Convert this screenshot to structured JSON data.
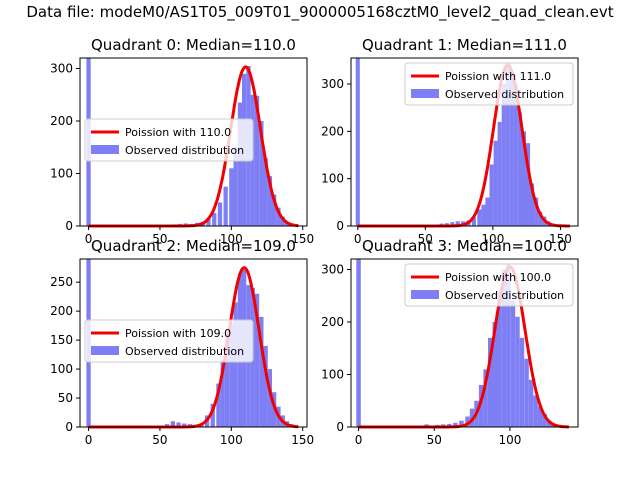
{
  "figure_title": "Data file: modeM0/AS1T05_009T01_9000005168cztM0_level2_quad_clean.evt",
  "colors": {
    "histogram": "#7f7ff5",
    "poisson": "#f00000",
    "axes": "#000000"
  },
  "chart_data": [
    {
      "type": "bar",
      "title": "Quadrant 0: Median=110.0",
      "legend_position": "center-left",
      "legend": {
        "line": "Poission with 110.0",
        "bars": "Observed distribution"
      },
      "xlim": [
        -6,
        153
      ],
      "ylim": [
        0,
        320
      ],
      "xticks": [
        0,
        50,
        100,
        150
      ],
      "yticks": [
        0,
        100,
        200,
        300
      ],
      "bin_width": 3,
      "poisson_mean": 110,
      "poisson_peak": 303,
      "bins": [
        [
          0,
          320
        ],
        [
          60,
          3
        ],
        [
          64,
          4
        ],
        [
          68,
          5
        ],
        [
          72,
          4
        ],
        [
          76,
          6
        ],
        [
          80,
          8
        ],
        [
          84,
          15
        ],
        [
          88,
          25
        ],
        [
          92,
          45
        ],
        [
          96,
          75
        ],
        [
          100,
          110
        ],
        [
          103,
          150
        ],
        [
          106,
          235
        ],
        [
          109,
          290
        ],
        [
          112,
          305
        ],
        [
          115,
          250
        ],
        [
          118,
          248
        ],
        [
          121,
          200
        ],
        [
          124,
          130
        ],
        [
          127,
          95
        ],
        [
          130,
          60
        ],
        [
          133,
          35
        ],
        [
          136,
          18
        ],
        [
          139,
          8
        ],
        [
          142,
          4
        ]
      ]
    },
    {
      "type": "bar",
      "title": "Quadrant 1: Median=111.0",
      "legend_position": "top-right",
      "legend": {
        "line": "Poission with 111.0",
        "bars": "Observed distribution"
      },
      "xlim": [
        -5,
        163
      ],
      "ylim": [
        0,
        355
      ],
      "xticks": [
        0,
        50,
        100,
        150
      ],
      "yticks": [
        0,
        100,
        200,
        300
      ],
      "bin_width": 3,
      "poisson_mean": 111,
      "poisson_peak": 340,
      "bins": [
        [
          0,
          355
        ],
        [
          58,
          3
        ],
        [
          62,
          5
        ],
        [
          66,
          6
        ],
        [
          70,
          8
        ],
        [
          74,
          10
        ],
        [
          78,
          10
        ],
        [
          82,
          12
        ],
        [
          86,
          18
        ],
        [
          90,
          35
        ],
        [
          93,
          45
        ],
        [
          96,
          60
        ],
        [
          99,
          130
        ],
        [
          102,
          180
        ],
        [
          105,
          220
        ],
        [
          108,
          300
        ],
        [
          111,
          335
        ],
        [
          114,
          325
        ],
        [
          117,
          300
        ],
        [
          120,
          240
        ],
        [
          123,
          200
        ],
        [
          126,
          175
        ],
        [
          129,
          90
        ],
        [
          132,
          60
        ],
        [
          135,
          30
        ],
        [
          138,
          20
        ],
        [
          141,
          10
        ],
        [
          144,
          5
        ],
        [
          147,
          3
        ]
      ]
    },
    {
      "type": "bar",
      "title": "Quadrant 2: Median=109.0",
      "legend_position": "center-left",
      "legend": {
        "line": "Poission with 109.0",
        "bars": "Observed distribution"
      },
      "xlim": [
        -6,
        153
      ],
      "ylim": [
        0,
        290
      ],
      "xticks": [
        0,
        50,
        100,
        150
      ],
      "yticks": [
        0,
        50,
        100,
        150,
        200,
        250
      ],
      "bin_width": 3,
      "poisson_mean": 109,
      "poisson_peak": 275,
      "bins": [
        [
          0,
          290
        ],
        [
          55,
          5
        ],
        [
          59,
          10
        ],
        [
          63,
          8
        ],
        [
          67,
          6
        ],
        [
          71,
          5
        ],
        [
          75,
          4
        ],
        [
          79,
          5
        ],
        [
          83,
          20
        ],
        [
          87,
          40
        ],
        [
          91,
          75
        ],
        [
          94,
          115
        ],
        [
          97,
          160
        ],
        [
          100,
          180
        ],
        [
          103,
          215
        ],
        [
          106,
          265
        ],
        [
          109,
          275
        ],
        [
          112,
          245
        ],
        [
          115,
          240
        ],
        [
          118,
          230
        ],
        [
          121,
          190
        ],
        [
          124,
          140
        ],
        [
          127,
          100
        ],
        [
          130,
          60
        ],
        [
          133,
          35
        ],
        [
          136,
          20
        ],
        [
          139,
          10
        ],
        [
          142,
          5
        ]
      ]
    },
    {
      "type": "bar",
      "title": "Quadrant 3: Median=100.0",
      "legend_position": "top-right",
      "legend": {
        "line": "Poission with 100.0",
        "bars": "Observed distribution"
      },
      "xlim": [
        -5,
        145
      ],
      "ylim": [
        0,
        320
      ],
      "xticks": [
        0,
        50,
        100
      ],
      "yticks": [
        0,
        100,
        200,
        300
      ],
      "bin_width": 3,
      "poisson_mean": 100,
      "poisson_peak": 305,
      "bins": [
        [
          0,
          320
        ],
        [
          45,
          5
        ],
        [
          52,
          4
        ],
        [
          56,
          5
        ],
        [
          60,
          6
        ],
        [
          64,
          8
        ],
        [
          68,
          12
        ],
        [
          72,
          20
        ],
        [
          75,
          35
        ],
        [
          78,
          50
        ],
        [
          81,
          80
        ],
        [
          84,
          110
        ],
        [
          87,
          170
        ],
        [
          90,
          200
        ],
        [
          93,
          260
        ],
        [
          96,
          300
        ],
        [
          99,
          310
        ],
        [
          102,
          240
        ],
        [
          105,
          210
        ],
        [
          108,
          170
        ],
        [
          111,
          130
        ],
        [
          114,
          90
        ],
        [
          117,
          60
        ],
        [
          120,
          40
        ],
        [
          123,
          25
        ],
        [
          126,
          12
        ],
        [
          129,
          5
        ]
      ]
    }
  ]
}
